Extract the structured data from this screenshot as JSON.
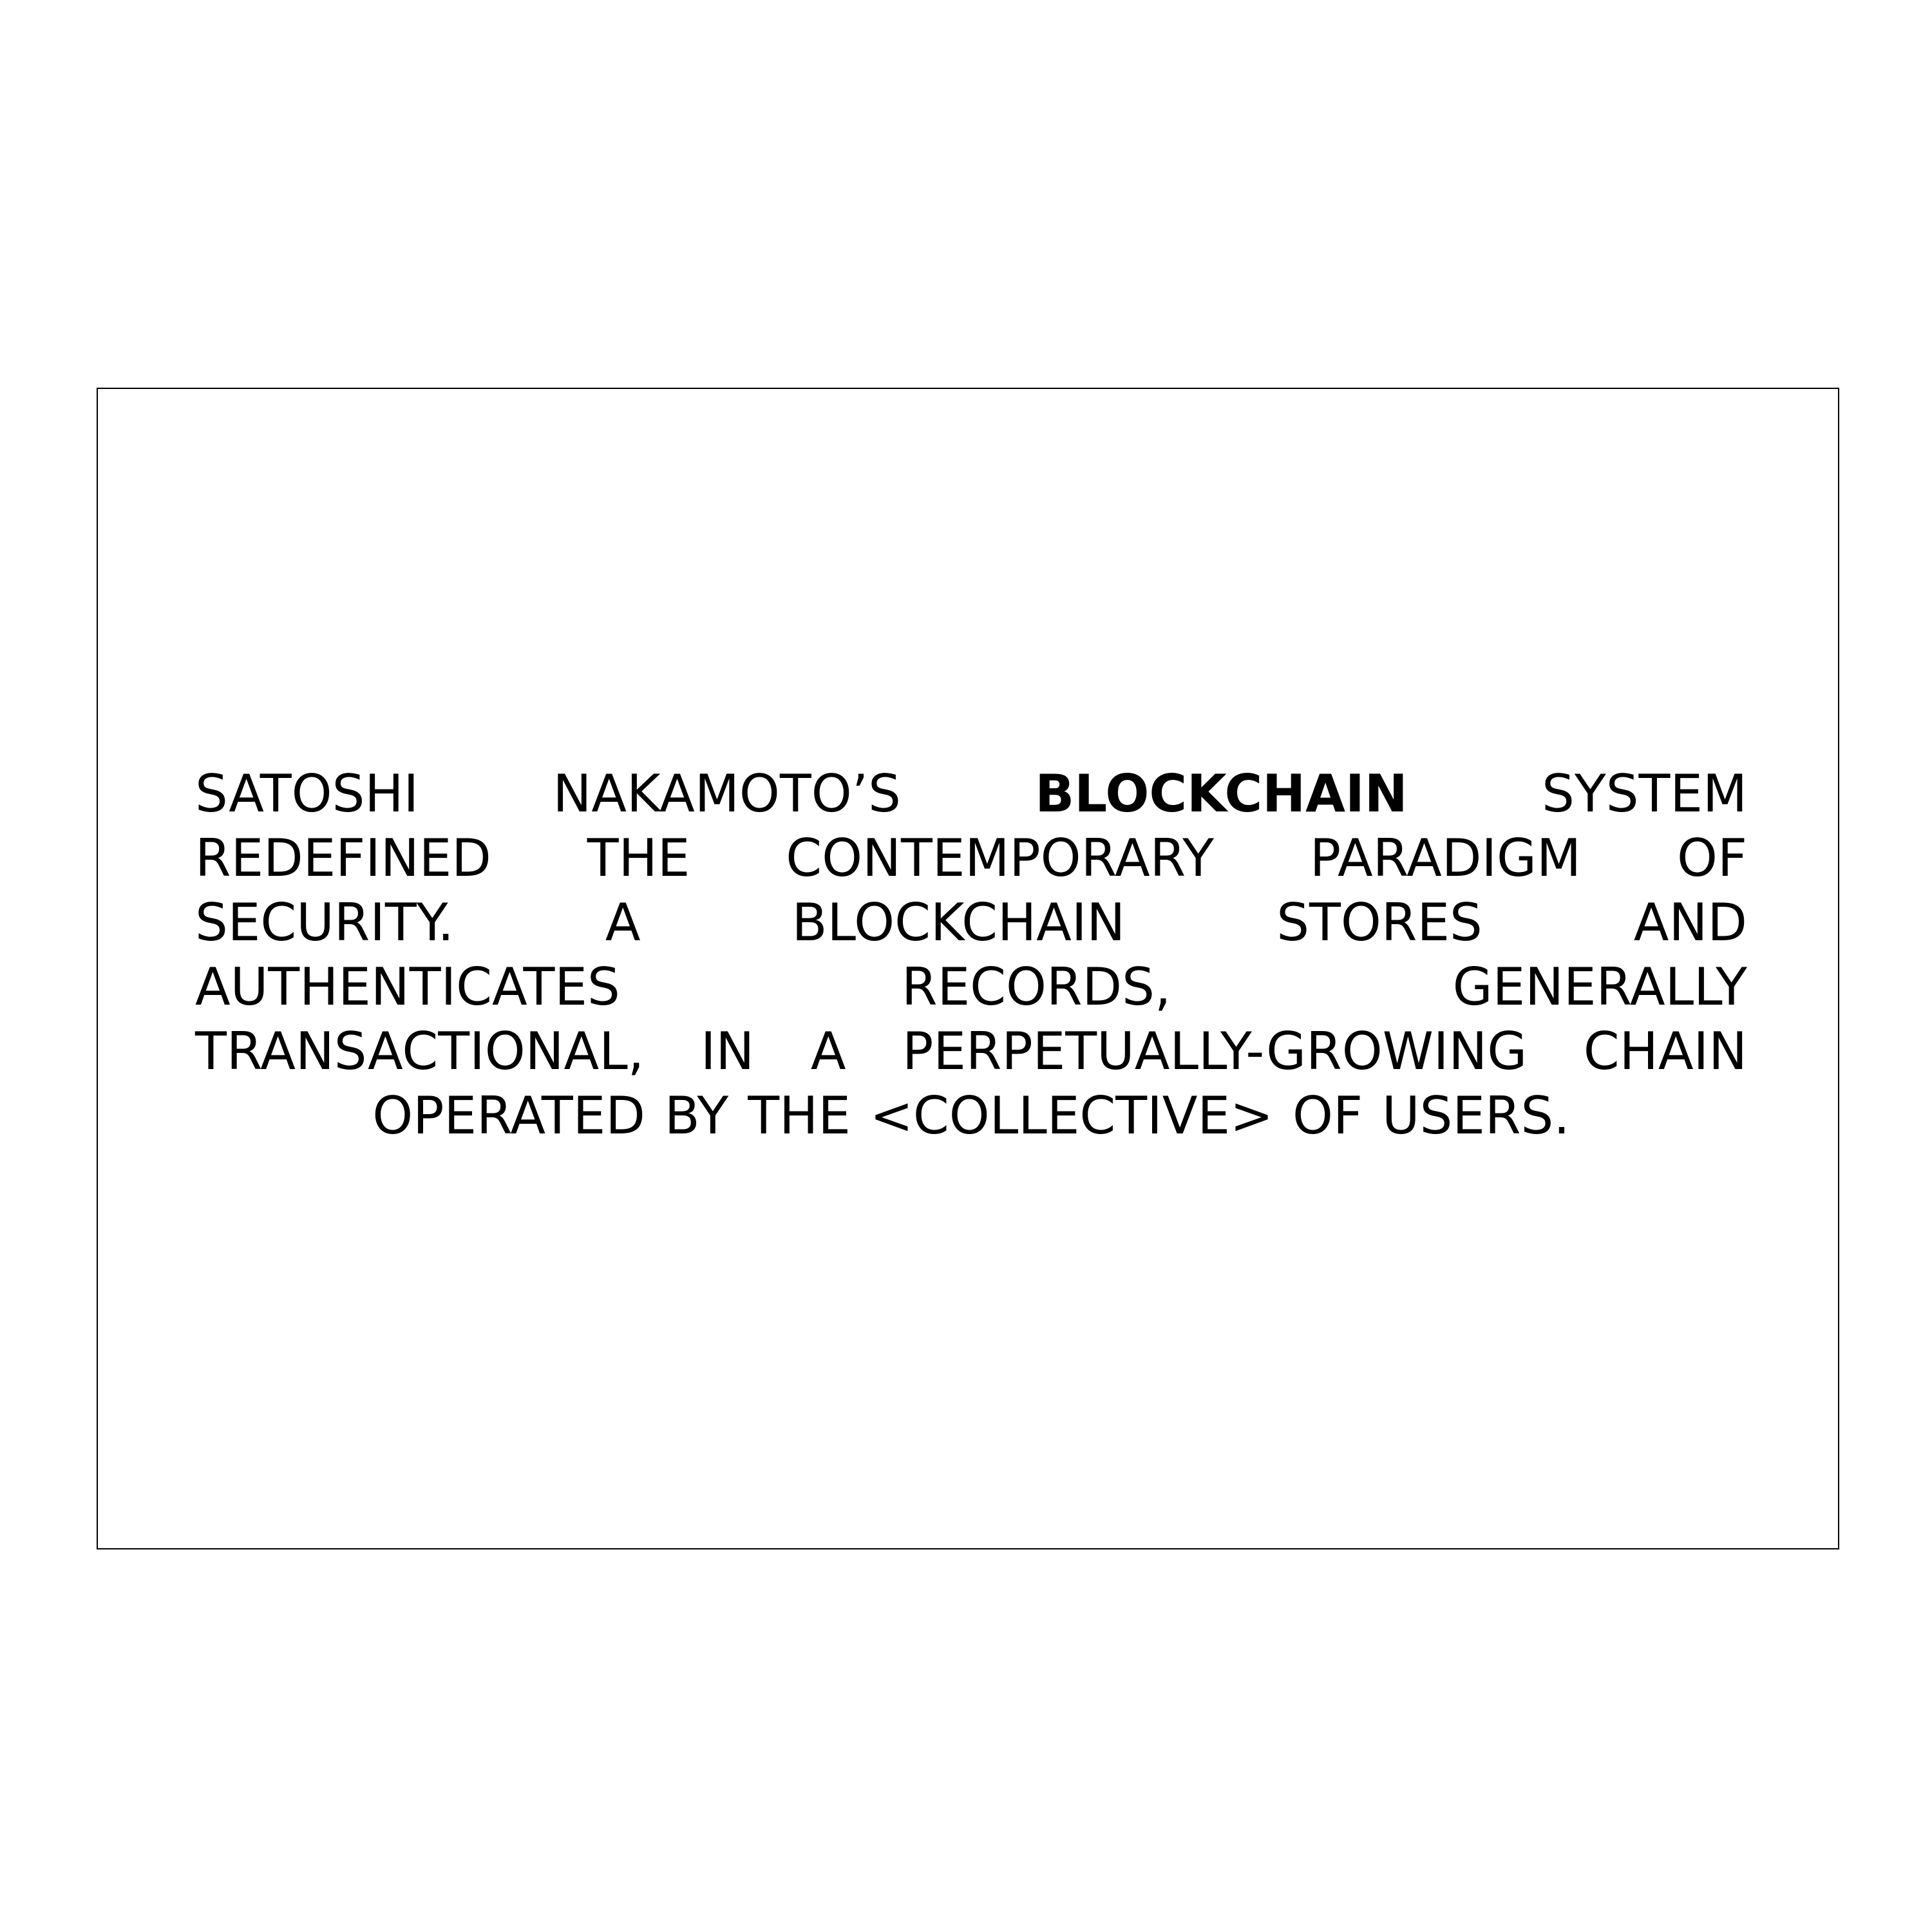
{
  "paragraph": {
    "lines": [
      {
        "align": "justify",
        "words": [
          {
            "text": "SATOSHI"
          },
          {
            "text": "NAKAMOTO’S"
          },
          {
            "text": "BLOCKCHAIN",
            "bold": true
          },
          {
            "text": "SYSTEM"
          }
        ]
      },
      {
        "align": "justify",
        "words": [
          {
            "text": "REDEFINED"
          },
          {
            "text": "THE"
          },
          {
            "text": "CONTEMPORARY"
          },
          {
            "text": "PARADIGM"
          },
          {
            "text": "OF"
          }
        ]
      },
      {
        "align": "justify",
        "words": [
          {
            "text": "SECURITY."
          },
          {
            "text": "A"
          },
          {
            "text": "BLOCKCHAIN"
          },
          {
            "text": "STORES"
          },
          {
            "text": "AND"
          }
        ]
      },
      {
        "align": "justify",
        "words": [
          {
            "text": "AUTHENTICATES"
          },
          {
            "text": "RECORDS,"
          },
          {
            "text": "GENERALLY"
          }
        ]
      },
      {
        "align": "justify",
        "words": [
          {
            "text": "TRANSACTIONAL,"
          },
          {
            "text": "IN"
          },
          {
            "text": "A"
          },
          {
            "text": "PERPETUALLY-GROWING"
          },
          {
            "text": "CHAIN"
          }
        ]
      },
      {
        "align": "center",
        "words": [
          {
            "text": "OPERATED"
          },
          {
            "text": "BY"
          },
          {
            "text": "THE"
          },
          {
            "text": "<COLLECTIVE>"
          },
          {
            "text": "OF"
          },
          {
            "text": "USERS."
          }
        ]
      }
    ]
  }
}
